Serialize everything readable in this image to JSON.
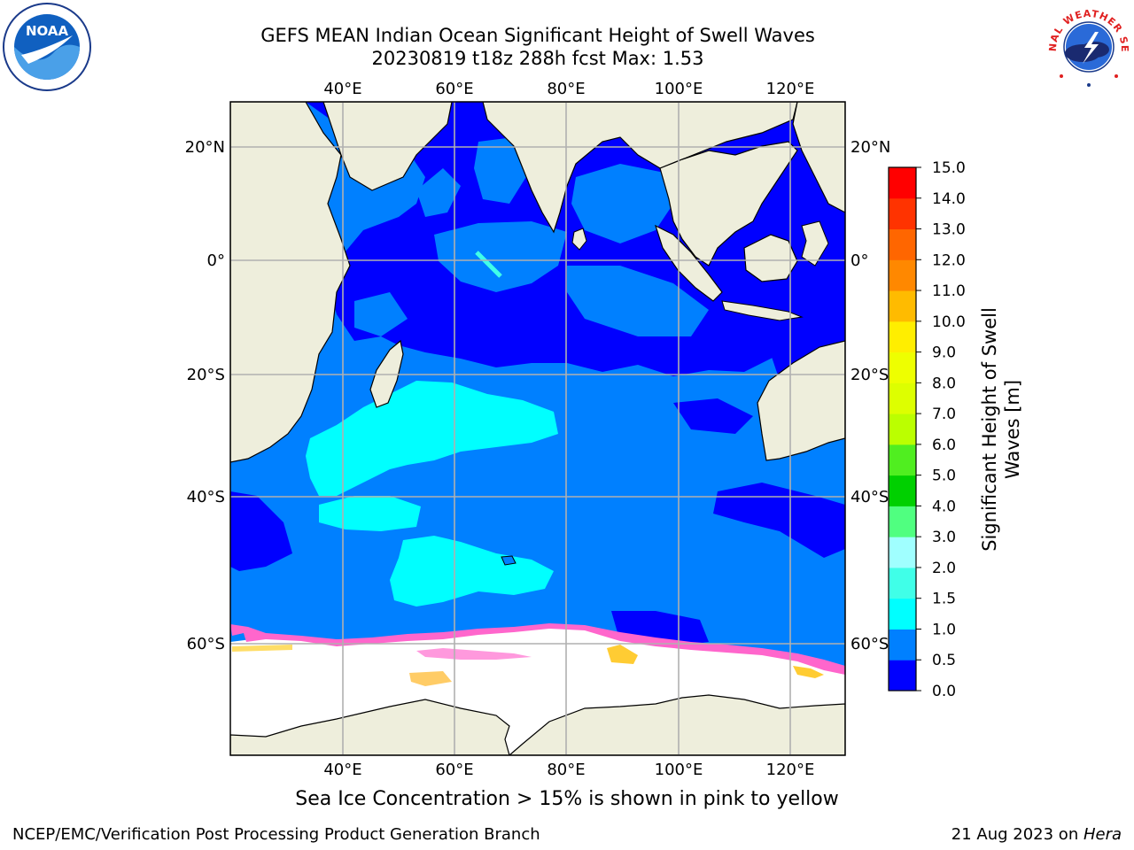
{
  "header": {
    "title_line1": "GEFS MEAN Indian Ocean Significant Height of Swell Waves",
    "title_line2": "20230819 t18z 288h fcst   Max: 1.53"
  },
  "logos": {
    "noaa_text": "NOAA",
    "nws_text": "NATIONAL WEATHER SERVICE"
  },
  "map": {
    "lon_ticks": [
      "40°E",
      "60°E",
      "80°E",
      "100°E",
      "120°E"
    ],
    "lat_ticks": [
      "20°N",
      "0°",
      "20°S",
      "40°S",
      "60°S"
    ],
    "colors": {
      "land": "#eeeedc",
      "ice": "#ffffff",
      "band_0_0_5": "#0000ff",
      "band_0_5_1_0": "#0080ff",
      "band_1_0_1_5": "#00ffff",
      "sea_ice_pink": "#ff66cc",
      "sea_ice_yellow": "#ffcc33",
      "grid": "#b0b0b0"
    }
  },
  "colorbar": {
    "label_line1": "Significant Height of Swell",
    "label_line2": "Waves [m]",
    "ticks": [
      "0.0",
      "0.5",
      "1.0",
      "1.5",
      "2.0",
      "3.0",
      "4.0",
      "5.0",
      "6.0",
      "7.0",
      "8.0",
      "9.0",
      "10.0",
      "11.0",
      "12.0",
      "13.0",
      "14.0",
      "15.0"
    ],
    "bins": [
      {
        "from": 0.0,
        "to": 0.5,
        "color": "#0000ff"
      },
      {
        "from": 0.5,
        "to": 1.0,
        "color": "#0080ff"
      },
      {
        "from": 1.0,
        "to": 1.5,
        "color": "#00ffff"
      },
      {
        "from": 1.5,
        "to": 2.0,
        "color": "#40ffe8"
      },
      {
        "from": 2.0,
        "to": 3.0,
        "color": "#a0ffff"
      },
      {
        "from": 3.0,
        "to": 4.0,
        "color": "#50ff80"
      },
      {
        "from": 4.0,
        "to": 5.0,
        "color": "#00d000"
      },
      {
        "from": 5.0,
        "to": 6.0,
        "color": "#50ee20"
      },
      {
        "from": 6.0,
        "to": 7.0,
        "color": "#bbff00"
      },
      {
        "from": 7.0,
        "to": 8.0,
        "color": "#ddff00"
      },
      {
        "from": 8.0,
        "to": 9.0,
        "color": "#eeff00"
      },
      {
        "from": 9.0,
        "to": 10.0,
        "color": "#ffee00"
      },
      {
        "from": 10.0,
        "to": 11.0,
        "color": "#ffbb00"
      },
      {
        "from": 11.0,
        "to": 12.0,
        "color": "#ff8800"
      },
      {
        "from": 12.0,
        "to": 13.0,
        "color": "#ff6600"
      },
      {
        "from": 13.0,
        "to": 14.0,
        "color": "#ff3300"
      },
      {
        "from": 14.0,
        "to": 15.0,
        "color": "#ff0000"
      }
    ]
  },
  "caption": "Sea Ice Concentration > 15% is shown in pink to yellow",
  "footer": {
    "left": "NCEP/EMC/Verification Post Processing Product Generation Branch",
    "right_prefix": "21 Aug 2023 on ",
    "right_host": "Hera"
  }
}
